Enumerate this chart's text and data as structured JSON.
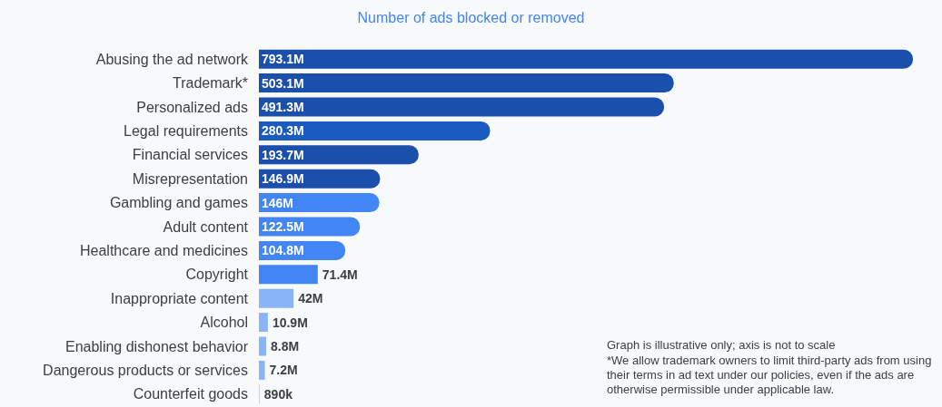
{
  "chart_data": {
    "type": "bar",
    "orientation": "horizontal",
    "title": "Number of ads blocked or removed",
    "categories": [
      "Abusing the ad network",
      "Trademark*",
      "Personalized ads",
      "Legal requirements",
      "Financial services",
      "Misrepresentation",
      "Gambling and games",
      "Adult content",
      "Healthcare and medicines",
      "Copyright",
      "Inappropriate content",
      "Alcohol",
      "Enabling dishonest behavior",
      "Dangerous products or services",
      "Counterfeit goods"
    ],
    "values": [
      793100000,
      503100000,
      491300000,
      280300000,
      193700000,
      146900000,
      146000000,
      122500000,
      104800000,
      71400000,
      42000000,
      10900000,
      8800000,
      7200000,
      890000
    ],
    "value_labels": [
      "793.1M",
      "503.1M",
      "491.3M",
      "280.3M",
      "193.7M",
      "146.9M",
      "146M",
      "122.5M",
      "104.8M",
      "71.4M",
      "42M",
      "10.9M",
      "8.8M",
      "7.2M",
      "890k"
    ],
    "colors": [
      "#1a4fab",
      "#1a4fab",
      "#1a4fab",
      "#1b5bbf",
      "#1a4fab",
      "#1a4fab",
      "#4285f4",
      "#4285f4",
      "#4285f4",
      "#4285f4",
      "#8ab4f8",
      "#8ab4f8",
      "#8ab4f8",
      "#8ab4f8",
      "#aecbfa"
    ],
    "annotations": [
      "Graph is illustrative only; axis is not to scale",
      "*We allow trademark owners to limit third-party ads from using their terms in ad text under our policies, even if the ads are otherwise permissible under applicable law."
    ]
  }
}
